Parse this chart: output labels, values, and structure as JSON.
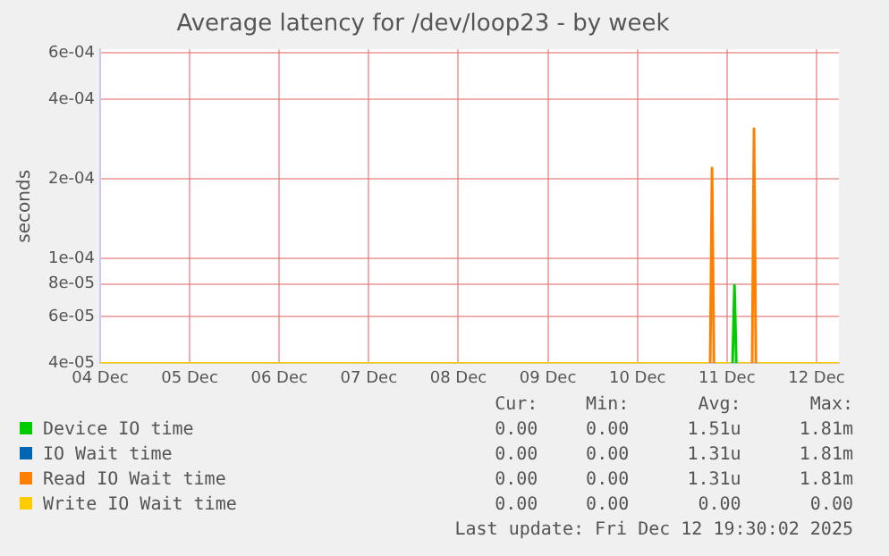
{
  "chart_data": {
    "type": "line",
    "title": "Average latency for /dev/loop23 - by week",
    "ylabel": "seconds",
    "log": "y",
    "grid": true,
    "legend": "bottom",
    "marker": "none",
    "line_style": "solid",
    "xlim": [
      "2025-12-04T00:00",
      "2025-12-12T06:00"
    ],
    "xticks": [
      {
        "value": "2025-12-04",
        "label": "04 Dec"
      },
      {
        "value": "2025-12-05",
        "label": "05 Dec"
      },
      {
        "value": "2025-12-06",
        "label": "06 Dec"
      },
      {
        "value": "2025-12-07",
        "label": "07 Dec"
      },
      {
        "value": "2025-12-08",
        "label": "08 Dec"
      },
      {
        "value": "2025-12-09",
        "label": "09 Dec"
      },
      {
        "value": "2025-12-10",
        "label": "10 Dec"
      },
      {
        "value": "2025-12-11",
        "label": "11 Dec"
      },
      {
        "value": "2025-12-12",
        "label": "12 Dec"
      }
    ],
    "ylim": [
      4e-05,
      0.00062
    ],
    "yticks": [
      {
        "value": 4e-05,
        "label": "4e-05"
      },
      {
        "value": 6e-05,
        "label": "6e-05"
      },
      {
        "value": 8e-05,
        "label": "8e-05"
      },
      {
        "value": 0.0001,
        "label": "1e-04"
      },
      {
        "value": 0.0002,
        "label": "2e-04"
      },
      {
        "value": 0.0004,
        "label": "4e-04"
      },
      {
        "value": 0.0006,
        "label": "6e-04"
      }
    ],
    "x": [
      "2025-12-04T00:00",
      "2025-12-10T19:00",
      "2025-12-10T19:30",
      "2025-12-10T20:00",
      "2025-12-10T20:30",
      "2025-12-10T21:00",
      "2025-12-11T01:00",
      "2025-12-11T01:30",
      "2025-12-11T02:00",
      "2025-12-11T02:30",
      "2025-12-11T03:00",
      "2025-12-11T06:15",
      "2025-12-11T06:45",
      "2025-12-11T07:15",
      "2025-12-11T07:45",
      "2025-12-11T08:15",
      "2025-12-12T06:00"
    ],
    "series": [
      {
        "name": "Device IO time",
        "color": "#00cc00",
        "values": [
          null,
          null,
          null,
          null,
          null,
          null,
          null,
          4e-05,
          7.9e-05,
          4e-05,
          null,
          null,
          null,
          null,
          null,
          null,
          null
        ]
      },
      {
        "name": "IO Wait time",
        "color": "#0066b3",
        "values": [
          null,
          null,
          null,
          null,
          null,
          null,
          null,
          null,
          null,
          null,
          null,
          null,
          null,
          null,
          null,
          null,
          null
        ]
      },
      {
        "name": "Read IO Wait time",
        "color": "#ff8000",
        "values": [
          null,
          null,
          4e-05,
          0.00022,
          4e-05,
          null,
          null,
          null,
          null,
          null,
          null,
          null,
          4e-05,
          0.00031,
          4e-05,
          null,
          null
        ]
      },
      {
        "name": "Write IO Wait time",
        "color": "#ffcc00",
        "values": [
          4e-05,
          4e-05,
          null,
          null,
          null,
          4e-05,
          4e-05,
          null,
          null,
          null,
          4e-05,
          4e-05,
          null,
          null,
          null,
          4e-05,
          4e-05
        ]
      }
    ],
    "annotations": [
      "Cur:",
      "Min:",
      "Avg:",
      "Max:",
      "0.00",
      "0.00",
      "1.51u",
      "1.81m",
      "0.00",
      "0.00",
      "1.31u",
      "1.81m",
      "0.00",
      "0.00",
      "1.31u",
      "1.81m",
      "0.00",
      "0.00",
      "0.00",
      "0.00",
      "Last update: Fri Dec 12 19:30:02 2025"
    ]
  }
}
